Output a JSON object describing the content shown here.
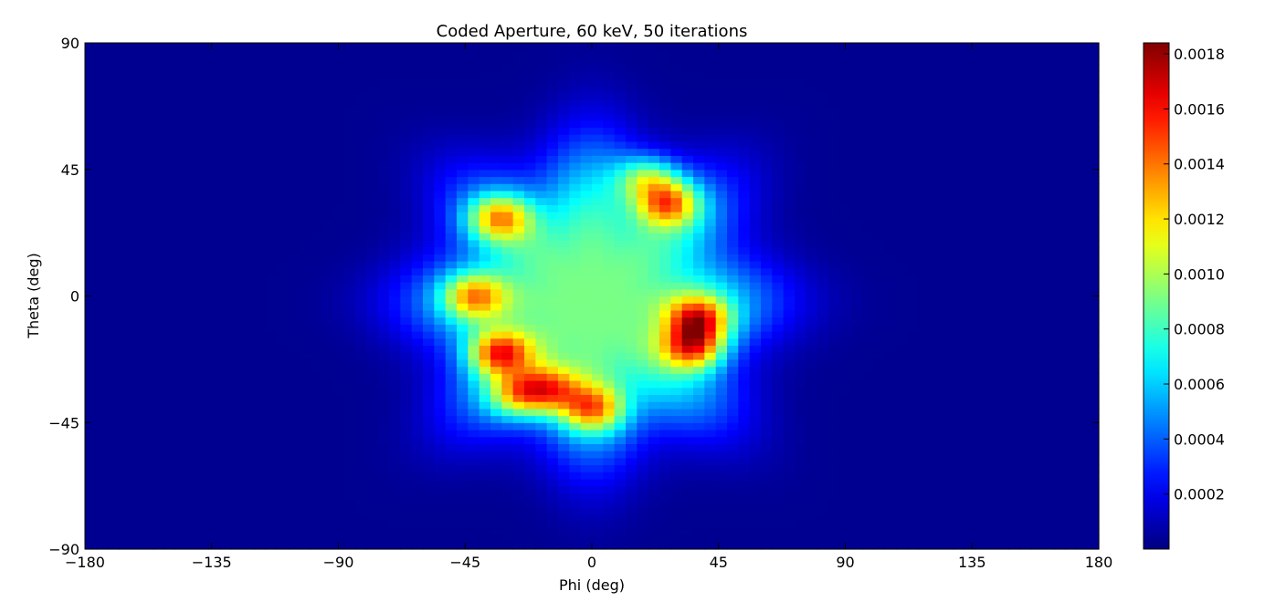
{
  "chart_data": {
    "type": "heatmap",
    "title": "Coded Aperture, 60 keV, 50 iterations",
    "xlabel": "Phi (deg)",
    "ylabel": "Theta (deg)",
    "xlim": [
      -180,
      180
    ],
    "ylim": [
      -90,
      90
    ],
    "xticks": [
      -180,
      -135,
      -90,
      -45,
      0,
      45,
      90,
      135,
      180
    ],
    "yticks": [
      -90,
      -45,
      0,
      45,
      90
    ],
    "xtick_labels": [
      "−180",
      "−135",
      "−90",
      "−45",
      "0",
      "45",
      "90",
      "135",
      "180"
    ],
    "ytick_labels": [
      "−90",
      "−45",
      "0",
      "45",
      "90"
    ],
    "colormap": "jet",
    "colorbar": {
      "min": 0.0,
      "max": 0.00184,
      "ticks": [
        0.0002,
        0.0004,
        0.0006,
        0.0008,
        0.001,
        0.0012,
        0.0014,
        0.0016,
        0.0018
      ],
      "tick_labels": [
        "0.0002",
        "0.0004",
        "0.0006",
        "0.0008",
        "0.0010",
        "0.0012",
        "0.0014",
        "0.0016",
        "0.0018"
      ]
    },
    "grid": false,
    "background_level": 3e-05,
    "central_blob": {
      "center_phi": 0,
      "center_theta": -2,
      "halfwidth_phi": 58,
      "halfwidth_theta": 52,
      "peak": 0.00088
    },
    "hotspots": [
      {
        "phi": -33,
        "theta": 28,
        "value": 0.00165
      },
      {
        "phi": 27,
        "theta": 33,
        "value": 0.00175
      },
      {
        "phi": -42,
        "theta": 0,
        "value": 0.0016
      },
      {
        "phi": 38,
        "theta": -8,
        "value": 0.0018
      },
      {
        "phi": -33,
        "theta": -20,
        "value": 0.00182
      },
      {
        "phi": 36,
        "theta": -18,
        "value": 0.0018
      },
      {
        "phi": -15,
        "theta": -33,
        "value": 0.0016
      },
      {
        "phi": 0,
        "theta": -40,
        "value": 0.00165
      },
      {
        "phi": 20,
        "theta": 42,
        "value": 0.0015
      },
      {
        "phi": -26,
        "theta": -35,
        "value": 0.0015
      }
    ]
  }
}
